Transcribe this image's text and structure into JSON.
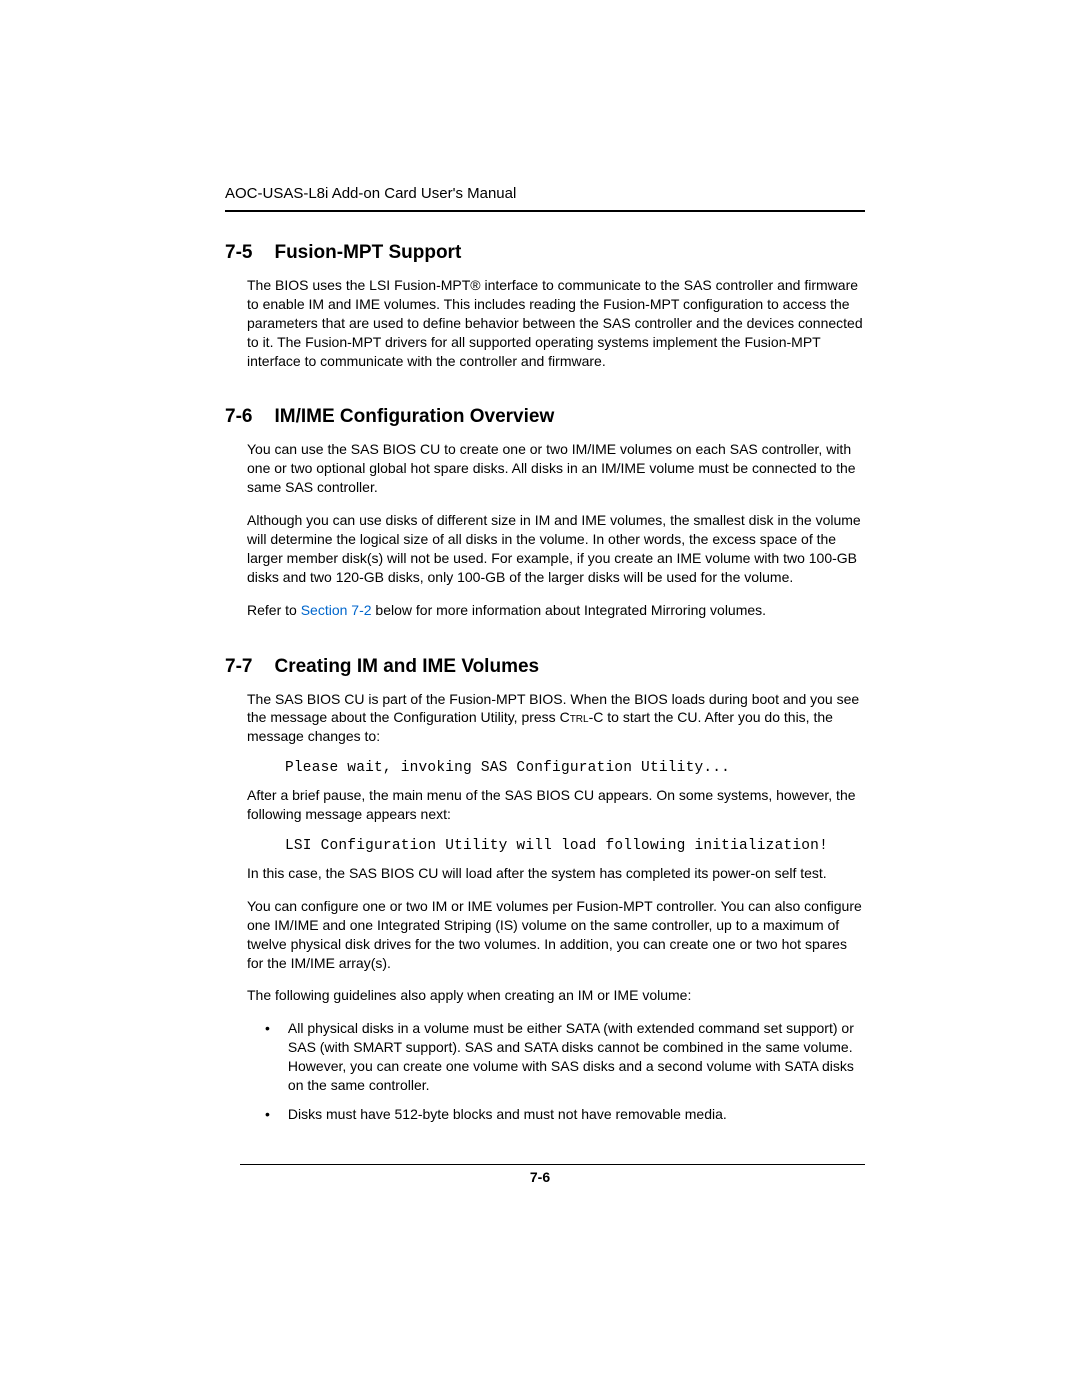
{
  "header_text": "AOC-USAS-L8i Add-on Card User's Manual",
  "sections": {
    "s1": {
      "num": "7-5",
      "title": "Fusion-MPT Support",
      "p1": "The BIOS uses the LSI Fusion-MPT® interface to communicate to the SAS controller and firmware to enable IM and IME volumes. This includes reading the Fusion-MPT configuration to access the parameters that are used to define behavior between the SAS controller and the devices connected to it. The Fusion-MPT drivers for all supported operating systems implement the Fusion-MPT interface to communicate with the controller and firmware."
    },
    "s2": {
      "num": "7-6",
      "title": "IM/IME Configuration Overview",
      "p1": "You can use the SAS BIOS CU to create one or two IM/IME volumes on each SAS controller, with one or two optional global hot spare disks. All disks in an IM/IME volume must be connected to the same SAS controller.",
      "p2": "Although you can use disks of different size in IM and IME volumes, the smallest disk in the volume will determine the logical size of all disks in the volume. In other words, the excess space of the larger member disk(s) will not be used. For example, if you create an IME volume with two 100-GB disks and two 120-GB disks, only 100-GB of the larger disks will be used for the volume.",
      "p3_pre": "Refer to ",
      "p3_link": "Section 7-2",
      "p3_post": " below for more information about Integrated Mirroring volumes."
    },
    "s3": {
      "num": "7-7",
      "title": "Creating IM and IME Volumes",
      "p1_pre": "The SAS BIOS CU is part of the Fusion-MPT BIOS. When the BIOS loads during boot and you see the message about the Configuration Utility, press C",
      "p1_sc": "trl",
      "p1_post": "-C to start the CU. After you do this, the message changes to:",
      "code1": "Please wait, invoking SAS Configuration Utility...",
      "p2": "After a brief pause, the main menu of the SAS BIOS CU appears. On some systems, however, the following message appears next:",
      "code2": "LSI Configuration Utility will load following initialization!",
      "p3": "In this case, the SAS BIOS CU will load after the system has completed its power-on self test.",
      "p4": "You can configure one or two IM or IME volumes per Fusion-MPT controller. You can also configure one IM/IME and one Integrated Striping (IS) volume on the same controller, up to a maximum of twelve physical disk drives for the two volumes. In addition, you can create one or two hot spares for the IM/IME array(s).",
      "p5": "The following guidelines also apply when creating an IM or IME volume:",
      "bullet1": "All physical disks in a volume must be either SATA (with extended command set support) or SAS (with SMART support). SAS and SATA disks cannot be combined in the same volume. However, you can create one volume with SAS disks and a second volume with SATA disks on the same controller.",
      "bullet2": "Disks must have 512-byte blocks and must not have removable media."
    }
  },
  "footer_pagenum": "7-6"
}
